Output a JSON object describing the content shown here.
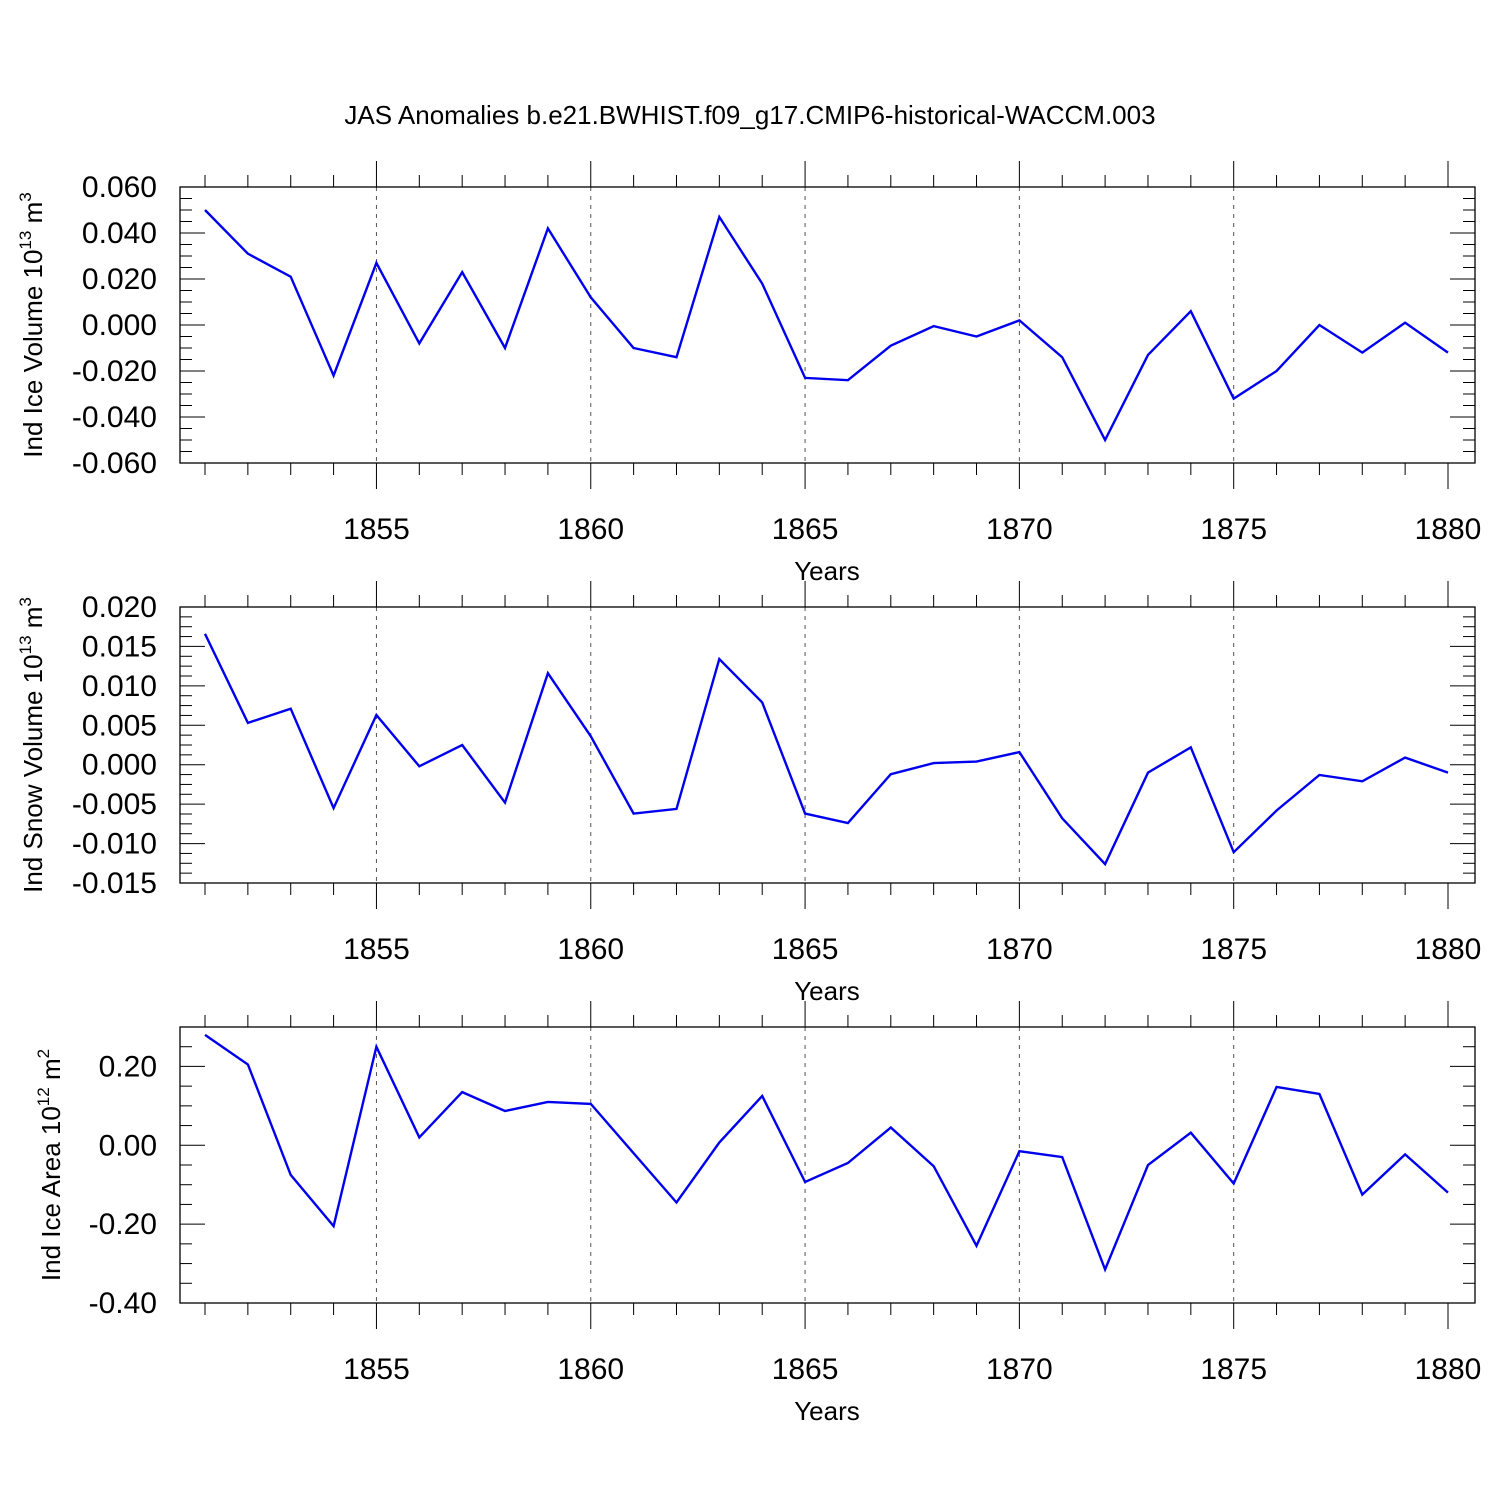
{
  "title": "JAS Anomalies b.e21.BWHIST.f09_g17.CMIP6-historical-WACCM.003",
  "chart_data": [
    {
      "type": "line",
      "xlabel": "Years",
      "ylabel": "Ind Ice Volume 10",
      "ylabel_exp": "13",
      "ylabel_unit": " m",
      "ylabel_unit_exp": "3",
      "xlim": [
        1851,
        1880
      ],
      "ylim": [
        -0.06,
        0.06
      ],
      "yticks": [
        -0.06,
        -0.04,
        -0.02,
        0.0,
        0.02,
        0.04,
        0.06
      ],
      "ytick_labels": [
        "-0.060",
        "-0.040",
        "-0.020",
        "0.000",
        "0.020",
        "0.040",
        "0.060"
      ],
      "xticks": [
        1855,
        1860,
        1865,
        1870,
        1875,
        1880
      ],
      "xtick_labels": [
        "1855",
        "1860",
        "1865",
        "1870",
        "1875",
        "1880"
      ],
      "grid": "vertical dashed at major x ticks",
      "line_color": "#0000ee",
      "x": [
        1851,
        1852,
        1853,
        1854,
        1855,
        1856,
        1857,
        1858,
        1859,
        1860,
        1861,
        1862,
        1863,
        1864,
        1865,
        1866,
        1867,
        1868,
        1869,
        1870,
        1871,
        1872,
        1873,
        1874,
        1875,
        1876,
        1877,
        1878,
        1879,
        1880
      ],
      "values": [
        0.05,
        0.031,
        0.021,
        -0.022,
        0.027,
        -0.008,
        0.023,
        -0.01,
        0.042,
        0.012,
        -0.01,
        -0.014,
        0.047,
        0.018,
        -0.023,
        -0.024,
        -0.009,
        -0.0005,
        -0.005,
        0.002,
        -0.014,
        -0.05,
        -0.013,
        0.006,
        -0.032,
        -0.02,
        0.0,
        -0.012,
        0.001,
        -0.012
      ]
    },
    {
      "type": "line",
      "xlabel": "Years",
      "ylabel": "Ind Snow Volume 10",
      "ylabel_exp": "13",
      "ylabel_unit": " m",
      "ylabel_unit_exp": "3",
      "xlim": [
        1851,
        1880
      ],
      "ylim": [
        -0.015,
        0.02
      ],
      "yticks": [
        -0.015,
        -0.01,
        -0.005,
        0.0,
        0.005,
        0.01,
        0.015,
        0.02
      ],
      "ytick_labels": [
        "-0.015",
        "-0.010",
        "-0.005",
        "0.000",
        "0.005",
        "0.010",
        "0.015",
        "0.020"
      ],
      "xticks": [
        1855,
        1860,
        1865,
        1870,
        1875,
        1880
      ],
      "xtick_labels": [
        "1855",
        "1860",
        "1865",
        "1870",
        "1875",
        "1880"
      ],
      "grid": "vertical dashed at major x ticks",
      "line_color": "#0000ee",
      "x": [
        1851,
        1852,
        1853,
        1854,
        1855,
        1856,
        1857,
        1858,
        1859,
        1860,
        1861,
        1862,
        1863,
        1864,
        1865,
        1866,
        1867,
        1868,
        1869,
        1870,
        1871,
        1872,
        1873,
        1874,
        1875,
        1876,
        1877,
        1878,
        1879,
        1880
      ],
      "values": [
        0.0166,
        0.0053,
        0.0071,
        -0.0055,
        0.0063,
        -0.0002,
        0.0025,
        -0.0048,
        0.0116,
        0.0036,
        -0.0062,
        -0.0056,
        0.0134,
        0.0079,
        -0.0062,
        -0.0074,
        -0.0012,
        0.0002,
        0.0004,
        0.0016,
        -0.0068,
        -0.0126,
        -0.001,
        0.0022,
        -0.0111,
        -0.0058,
        -0.0013,
        -0.0021,
        0.0009,
        -0.001
      ]
    },
    {
      "type": "line",
      "xlabel": "Years",
      "ylabel": "Ind Ice Area 10",
      "ylabel_exp": "12",
      "ylabel_unit": " m",
      "ylabel_unit_exp": "2",
      "xlim": [
        1851,
        1880
      ],
      "ylim": [
        -0.4,
        0.3
      ],
      "yticks": [
        -0.4,
        -0.2,
        0.0,
        0.2
      ],
      "ytick_labels": [
        "-0.40",
        "-0.20",
        "0.00",
        "0.20"
      ],
      "xticks": [
        1855,
        1860,
        1865,
        1870,
        1875,
        1880
      ],
      "xtick_labels": [
        "1855",
        "1860",
        "1865",
        "1870",
        "1875",
        "1880"
      ],
      "grid": "vertical dashed at major x ticks",
      "line_color": "#0000ee",
      "x": [
        1851,
        1852,
        1853,
        1854,
        1855,
        1856,
        1857,
        1858,
        1859,
        1860,
        1861,
        1862,
        1863,
        1864,
        1865,
        1866,
        1867,
        1868,
        1869,
        1870,
        1871,
        1872,
        1873,
        1874,
        1875,
        1876,
        1877,
        1878,
        1879,
        1880
      ],
      "values": [
        0.28,
        0.205,
        -0.075,
        -0.205,
        0.25,
        0.02,
        0.135,
        0.087,
        0.11,
        0.105,
        -0.02,
        -0.145,
        0.007,
        0.125,
        -0.093,
        -0.045,
        0.045,
        -0.053,
        -0.255,
        -0.015,
        -0.03,
        -0.315,
        -0.05,
        0.032,
        -0.097,
        0.148,
        0.13,
        -0.125,
        -0.023,
        -0.12
      ]
    }
  ]
}
